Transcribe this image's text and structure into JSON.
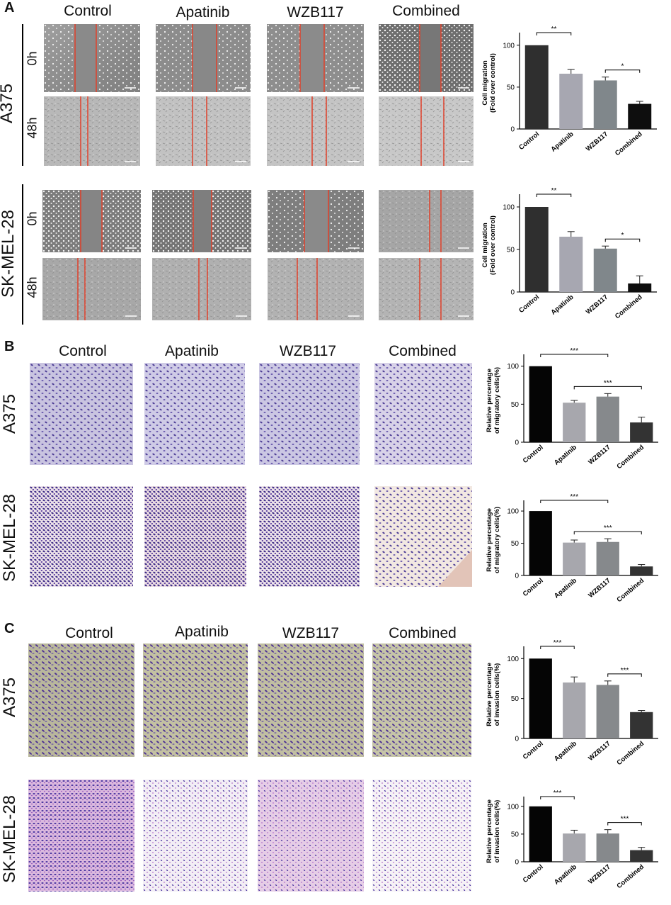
{
  "panel_A": {
    "letter": "A",
    "headers": [
      "Control",
      "Apatinib",
      "WZB117",
      "Combined"
    ],
    "cell_lines": [
      "A375",
      "SK-MEL-28"
    ],
    "timepoints": [
      "0h",
      "48h"
    ]
  },
  "panel_B": {
    "letter": "B",
    "headers": [
      "Control",
      "Apatinib",
      "WZB117",
      "Combined"
    ],
    "cell_lines": [
      "A375",
      "SK-MEL-28"
    ]
  },
  "panel_C": {
    "letter": "C",
    "headers": [
      "Control",
      "Apatinib",
      "WZB117",
      "Combined"
    ],
    "cell_lines": [
      "A375",
      "SK-MEL-28"
    ]
  },
  "colors": {
    "scratch_line": "#e0402a",
    "control_bar_A": "#2e2e2e",
    "apatinib_bar": "#a9a9b3",
    "wzb_bar": "#7f868a",
    "combined_bar": "#111111",
    "crystal_violet": "#4a2f8f",
    "pink_stain": "#c65bbf"
  },
  "chart_data": [
    {
      "id": "A_A375",
      "type": "bar",
      "categories": [
        "Control",
        "Apatinib",
        "WZB117",
        "Combined"
      ],
      "values": [
        100,
        66,
        58,
        30
      ],
      "errors": [
        0,
        5,
        4,
        3
      ],
      "ylabel_lines": [
        "Cell migration",
        "(Fold over control)"
      ],
      "yticks": [
        "0",
        "50",
        "100"
      ],
      "ylim": [
        0,
        110
      ],
      "colors": [
        "#2f2f2f",
        "#a7a7b1",
        "#80878b",
        "#0e0e0e"
      ],
      "brackets": [
        {
          "from": 0,
          "to": 1,
          "label": "**"
        },
        {
          "from": 2,
          "to": 3,
          "label": "*"
        }
      ]
    },
    {
      "id": "A_SKMEL28",
      "type": "bar",
      "categories": [
        "Control",
        "Apatinib",
        "WZB117",
        "Combined"
      ],
      "values": [
        100,
        65,
        51,
        10
      ],
      "errors": [
        0,
        6,
        3,
        9
      ],
      "ylabel_lines": [
        "Cell migration",
        "(Fold over control)"
      ],
      "yticks": [
        "0",
        "50",
        "100"
      ],
      "ylim": [
        0,
        110
      ],
      "colors": [
        "#2f2f2f",
        "#a7a7b1",
        "#80878b",
        "#0e0e0e"
      ],
      "brackets": [
        {
          "from": 0,
          "to": 1,
          "label": "**"
        },
        {
          "from": 2,
          "to": 3,
          "label": "*"
        }
      ]
    },
    {
      "id": "B_A375",
      "type": "bar",
      "categories": [
        "Control",
        "Apatinib",
        "WZB117",
        "Combined"
      ],
      "values": [
        100,
        52,
        60,
        26
      ],
      "errors": [
        0,
        3,
        4,
        7
      ],
      "ylabel_lines": [
        "Relative percentage",
        "of migratory cells(%)"
      ],
      "yticks": [
        "0",
        "50",
        "100"
      ],
      "ylim": [
        0,
        110
      ],
      "colors": [
        "#050505",
        "#a7a7ad",
        "#86898c",
        "#333333"
      ],
      "brackets": [
        {
          "from": 0,
          "to": 2,
          "label": "***"
        },
        {
          "from": 1,
          "to": 3,
          "label": "***"
        }
      ]
    },
    {
      "id": "B_SKMEL28",
      "type": "bar",
      "categories": [
        "Control",
        "Apatinib",
        "WZB117",
        "Combined"
      ],
      "values": [
        100,
        51,
        52,
        14
      ],
      "errors": [
        0,
        4,
        5,
        3
      ],
      "ylabel_lines": [
        "Relative percentage",
        "of migratory cells(%)"
      ],
      "yticks": [
        "0",
        "50",
        "100"
      ],
      "ylim": [
        0,
        110
      ],
      "colors": [
        "#050505",
        "#a7a7ad",
        "#86898c",
        "#333333"
      ],
      "brackets": [
        {
          "from": 0,
          "to": 2,
          "label": "***"
        },
        {
          "from": 1,
          "to": 3,
          "label": "***"
        }
      ]
    },
    {
      "id": "C_A375",
      "type": "bar",
      "categories": [
        "Control",
        "Apatinib",
        "WZB117",
        "Combined"
      ],
      "values": [
        100,
        70,
        67,
        33
      ],
      "errors": [
        0,
        7,
        5,
        2
      ],
      "ylabel_lines": [
        "Relative percentage",
        "of invasion cells(%)"
      ],
      "yticks": [
        "0",
        "50",
        "100"
      ],
      "ylim": [
        0,
        110
      ],
      "colors": [
        "#050505",
        "#a7a7ad",
        "#86898c",
        "#333333"
      ],
      "brackets": [
        {
          "from": 0,
          "to": 1,
          "label": "***"
        },
        {
          "from": 2,
          "to": 3,
          "label": "***"
        }
      ]
    },
    {
      "id": "C_SKMEL28",
      "type": "bar",
      "categories": [
        "Control",
        "Apatinib",
        "WZB117",
        "Combined"
      ],
      "values": [
        100,
        51,
        51,
        21
      ],
      "errors": [
        0,
        6,
        7,
        5
      ],
      "ylabel_lines": [
        "Relative percentage",
        "of invasion cells(%)"
      ],
      "yticks": [
        "0",
        "50",
        "100"
      ],
      "ylim": [
        0,
        110
      ],
      "colors": [
        "#050505",
        "#a7a7ad",
        "#86898c",
        "#333333"
      ],
      "brackets": [
        {
          "from": 0,
          "to": 1,
          "label": "***"
        },
        {
          "from": 2,
          "to": 3,
          "label": "***"
        }
      ]
    }
  ]
}
